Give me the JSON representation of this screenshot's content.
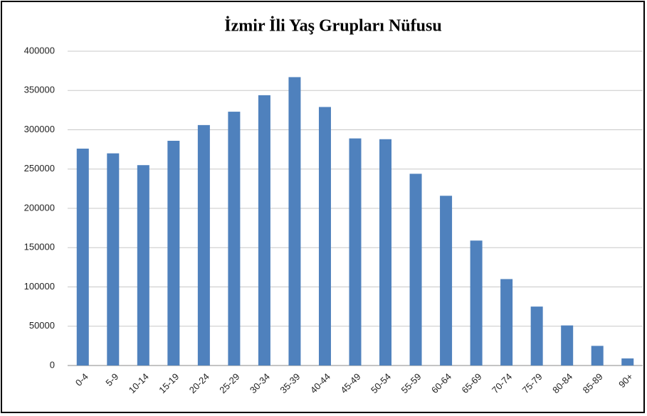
{
  "chart_data": {
    "type": "bar",
    "title": "İzmir İli Yaş Grupları Nüfusu",
    "categories": [
      "0-4",
      "5-9",
      "10-14",
      "15-19",
      "20-24",
      "25-29",
      "30-34",
      "35-39",
      "40-44",
      "45-49",
      "50-54",
      "55-59",
      "60-64",
      "65-69",
      "70-74",
      "75-79",
      "80-84",
      "85-89",
      "90+"
    ],
    "values": [
      276000,
      270000,
      255000,
      286000,
      306000,
      323000,
      344000,
      367000,
      329000,
      289000,
      288000,
      244000,
      216000,
      159000,
      110000,
      75000,
      51000,
      25000,
      9000
    ],
    "color": "#4f81bd",
    "ylim": [
      0,
      400000
    ],
    "yticks": [
      0,
      50000,
      100000,
      150000,
      200000,
      250000,
      300000,
      350000,
      400000
    ],
    "grid": true
  }
}
